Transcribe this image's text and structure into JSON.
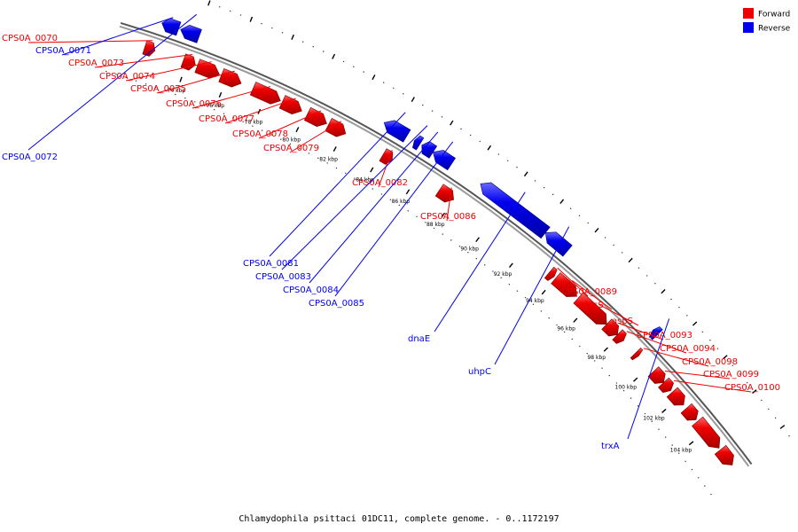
{
  "caption": "Chlamydophila psittaci 01DC11, complete genome. - 0..1172197",
  "colors": {
    "forward": "#ee0000",
    "reverse": "#0000ee",
    "backbone": "#888888"
  },
  "legend": [
    {
      "label": "Forward",
      "color": "#ee0000"
    },
    {
      "label": "Reverse",
      "color": "#0000ee"
    }
  ],
  "scale_unit": "kbp",
  "scale_ticks": [
    {
      "kbp": 74,
      "label": "74 kbp"
    },
    {
      "kbp": 76,
      "label": "76 kbp"
    },
    {
      "kbp": 78,
      "label": "78 kbp"
    },
    {
      "kbp": 80,
      "label": "80 kbp"
    },
    {
      "kbp": 82,
      "label": "82 kbp"
    },
    {
      "kbp": 84,
      "label": "84 kbp"
    },
    {
      "kbp": 86,
      "label": "86 kbp"
    },
    {
      "kbp": 88,
      "label": "88 kbp"
    },
    {
      "kbp": 90,
      "label": "90 kbp"
    },
    {
      "kbp": 92,
      "label": "92 kbp"
    },
    {
      "kbp": 94,
      "label": "94 kbp"
    },
    {
      "kbp": 96,
      "label": "96 kbp"
    },
    {
      "kbp": 98,
      "label": "98 kbp"
    },
    {
      "kbp": 100,
      "label": "100 kbp"
    },
    {
      "kbp": 102,
      "label": "102 kbp"
    },
    {
      "kbp": 104,
      "label": "104 kbp"
    }
  ],
  "genes": [
    {
      "name": "CPS0A_0070",
      "strand": "forward",
      "start_kbp": 71.9,
      "end_kbp": 72.4
    },
    {
      "name": "CPS0A_0071",
      "strand": "reverse",
      "start_kbp": 72.3,
      "end_kbp": 73.1
    },
    {
      "name": "CPS0A_0072",
      "strand": "reverse",
      "start_kbp": 73.2,
      "end_kbp": 74.1
    },
    {
      "name": "CPS0A_0073",
      "strand": "forward",
      "start_kbp": 73.8,
      "end_kbp": 74.4
    },
    {
      "name": "CPS0A_0074",
      "strand": "forward",
      "start_kbp": 74.5,
      "end_kbp": 75.6
    },
    {
      "name": "CPS0A_0075",
      "strand": "forward",
      "start_kbp": 75.7,
      "end_kbp": 76.7
    },
    {
      "name": "CPS0A_0076",
      "strand": "forward",
      "start_kbp": 77.3,
      "end_kbp": 78.7
    },
    {
      "name": "CPS0A_0077",
      "strand": "forward",
      "start_kbp": 78.8,
      "end_kbp": 79.8
    },
    {
      "name": "CPS0A_0078",
      "strand": "forward",
      "start_kbp": 80.1,
      "end_kbp": 81.1
    },
    {
      "name": "CPS0A_0079",
      "strand": "forward",
      "start_kbp": 81.2,
      "end_kbp": 82.1
    },
    {
      "name": "CPS0A_0081",
      "strand": "reverse",
      "start_kbp": 83.4,
      "end_kbp": 84.6
    },
    {
      "name": "CPS0A_0082",
      "strand": "forward",
      "start_kbp": 84.1,
      "end_kbp": 84.6
    },
    {
      "name": "CPS0A_0083",
      "strand": "reverse",
      "start_kbp": 85.0,
      "end_kbp": 85.3
    },
    {
      "name": "CPS0A_0084",
      "strand": "reverse",
      "start_kbp": 85.4,
      "end_kbp": 86.0
    },
    {
      "name": "CPS0A_0085",
      "strand": "reverse",
      "start_kbp": 86.0,
      "end_kbp": 87.0
    },
    {
      "name": "CPS0A_0086",
      "strand": "forward",
      "start_kbp": 87.2,
      "end_kbp": 88.0
    },
    {
      "name": "dnaE",
      "strand": "reverse",
      "start_kbp": 88.6,
      "end_kbp": 92.3
    },
    {
      "name": "uhpC",
      "strand": "reverse",
      "start_kbp": 92.3,
      "end_kbp": 93.6
    },
    {
      "name": "CPS0A_0089",
      "strand": "forward",
      "start_kbp": 93.6,
      "end_kbp": 93.9
    },
    {
      "name": "hisS",
      "strand": "forward",
      "start_kbp": 94.0,
      "end_kbp": 95.3
    },
    {
      "name": "aspS",
      "strand": "forward",
      "start_kbp": 95.4,
      "end_kbp": 97.2
    },
    {
      "name": "CPS0A_0093",
      "strand": "forward",
      "start_kbp": 97.2,
      "end_kbp": 97.9
    },
    {
      "name": "CPS0A_0094",
      "strand": "forward",
      "start_kbp": 97.9,
      "end_kbp": 98.3
    },
    {
      "name": "trxA",
      "strand": "reverse",
      "start_kbp": 98.9,
      "end_kbp": 99.2
    },
    {
      "name": "CPS0A_0098",
      "strand": "forward",
      "start_kbp": 99.1,
      "end_kbp": 99.3
    },
    {
      "name": "CPS0A_0099",
      "strand": "forward",
      "start_kbp": 100.3,
      "end_kbp": 101.0
    },
    {
      "name": "CPS0A_0100",
      "strand": "forward",
      "start_kbp": 101.0,
      "end_kbp": 101.5
    },
    {
      "name": "",
      "strand": "forward",
      "start_kbp": 101.6,
      "end_kbp": 102.4
    },
    {
      "name": "",
      "strand": "forward",
      "start_kbp": 102.6,
      "end_kbp": 103.3
    },
    {
      "name": "",
      "strand": "forward",
      "start_kbp": 103.4,
      "end_kbp": 105.0
    },
    {
      "name": "",
      "strand": "forward",
      "start_kbp": 105.1,
      "end_kbp": 106.0
    }
  ]
}
